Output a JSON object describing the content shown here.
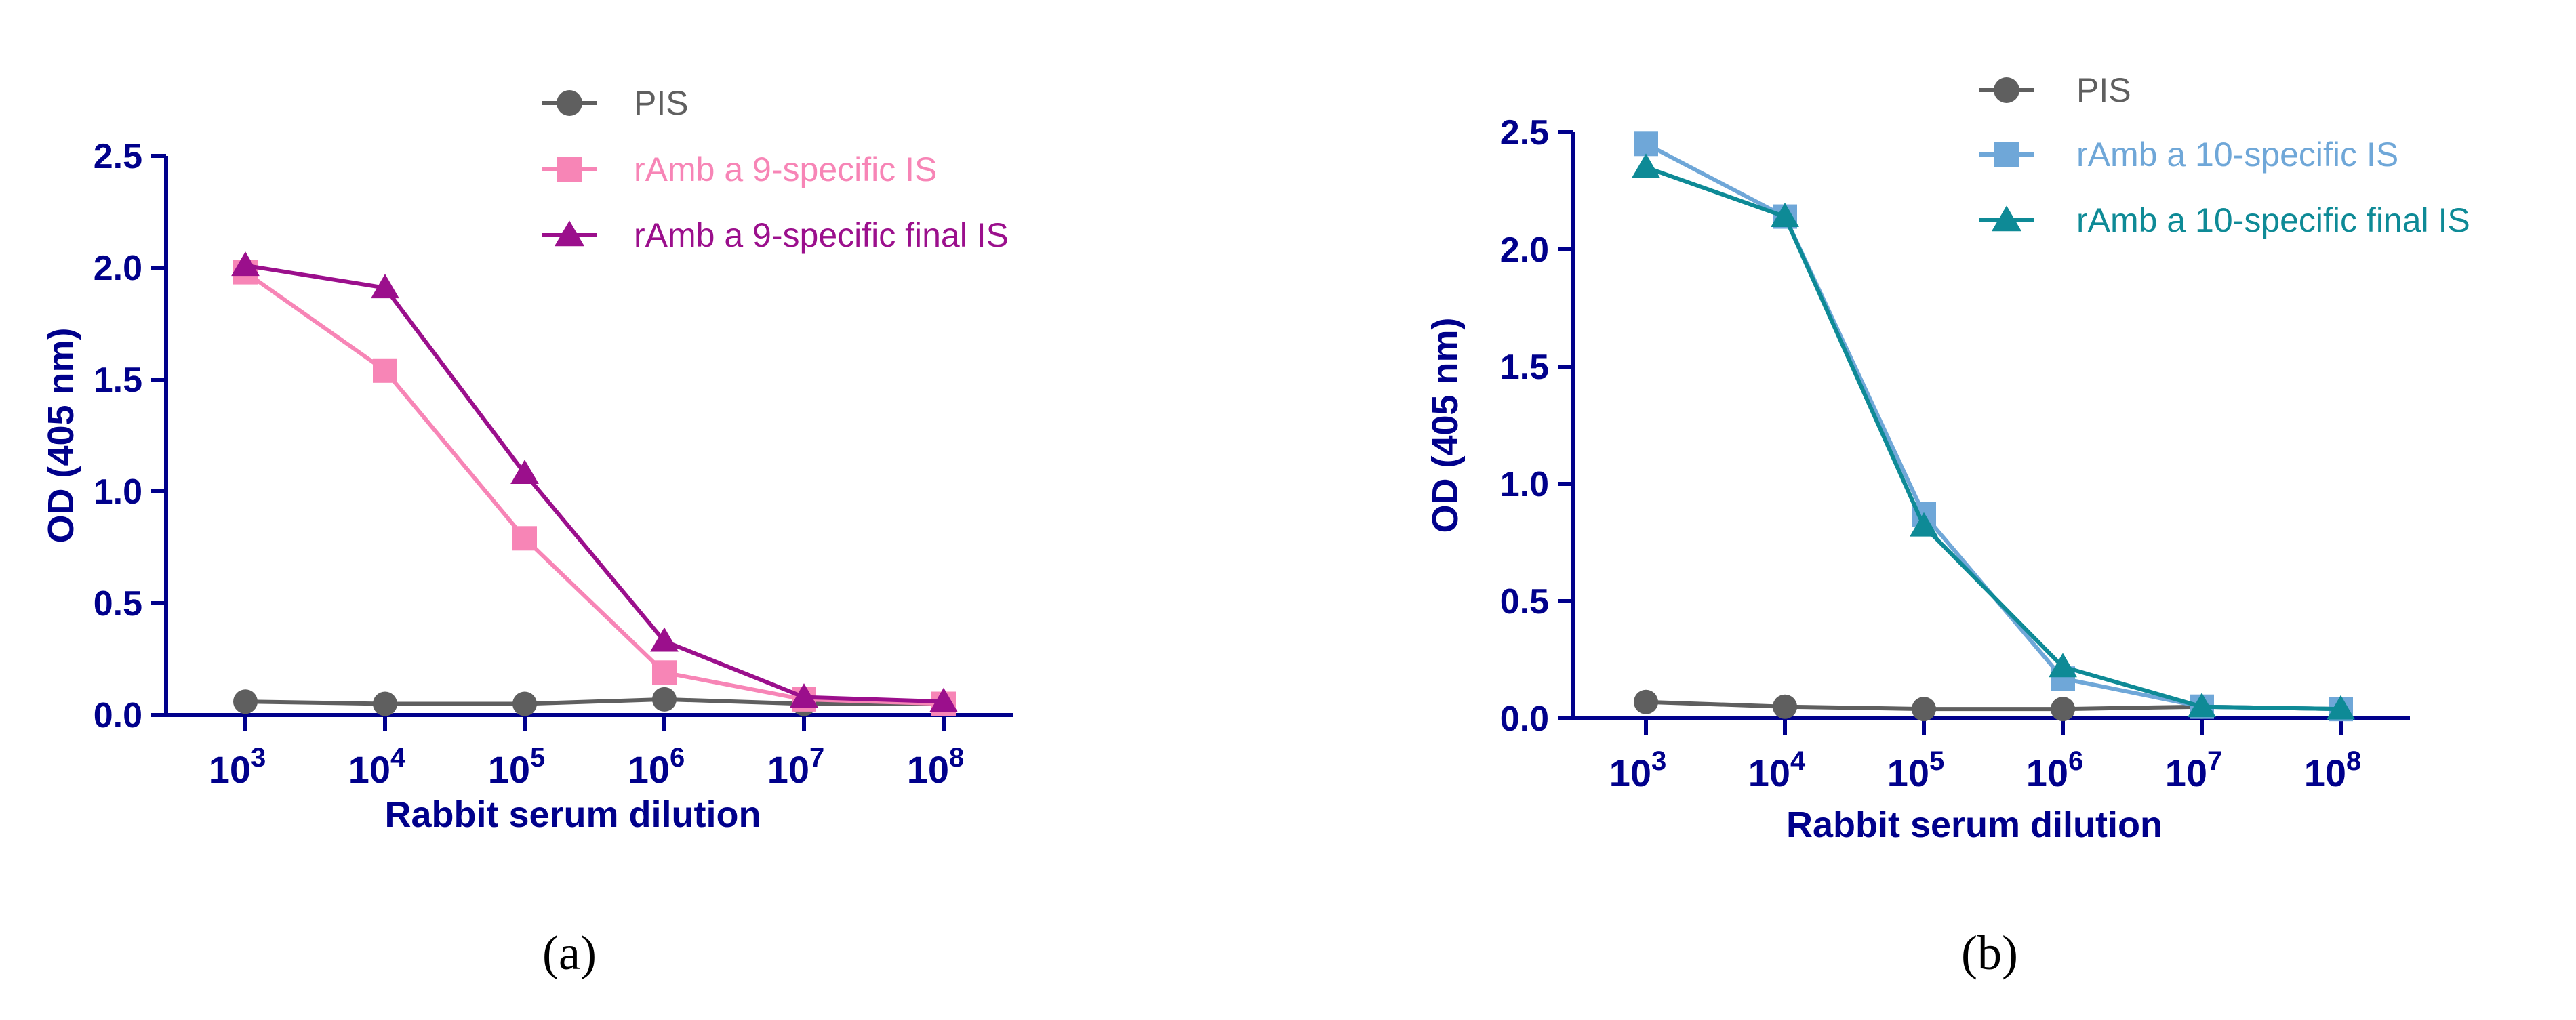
{
  "chart_data": [
    {
      "type": "line",
      "panel_label": "(a)",
      "xlabel": "Rabbit serum dilution",
      "ylabel": "OD (405 nm)",
      "x_scale": "log",
      "x": [
        1000,
        10000,
        100000,
        1000000,
        10000000,
        100000000
      ],
      "x_tick_base": "10",
      "x_tick_exponents": [
        "3",
        "4",
        "5",
        "6",
        "7",
        "8"
      ],
      "ylim": [
        0,
        2.5
      ],
      "y_ticks": [
        "0.0",
        "0.5",
        "1.0",
        "1.5",
        "2.0",
        "2.5"
      ],
      "grid": false,
      "legend_position": "top-center",
      "series": [
        {
          "name": "PIS",
          "color": "#5f5f5f",
          "marker": "circle",
          "values": [
            0.06,
            0.05,
            0.05,
            0.07,
            0.05,
            0.05
          ]
        },
        {
          "name": "rAmb a 9-specific IS",
          "color": "#f785b6",
          "marker": "square",
          "values": [
            1.98,
            1.54,
            0.79,
            0.19,
            0.07,
            0.05
          ]
        },
        {
          "name": "rAmb a 9-specific final IS",
          "color": "#9b0f8c",
          "marker": "triangle",
          "values": [
            2.01,
            1.91,
            1.08,
            0.33,
            0.08,
            0.06
          ]
        }
      ]
    },
    {
      "type": "line",
      "panel_label": "(b)",
      "xlabel": "Rabbit serum dilution",
      "ylabel": "OD (405 nm)",
      "x_scale": "log",
      "x": [
        1000,
        10000,
        100000,
        1000000,
        10000000,
        100000000
      ],
      "x_tick_base": "10",
      "x_tick_exponents": [
        "3",
        "4",
        "5",
        "6",
        "7",
        "8"
      ],
      "ylim": [
        0,
        2.5
      ],
      "y_ticks": [
        "0.0",
        "0.5",
        "1.0",
        "1.5",
        "2.0",
        "2.5"
      ],
      "grid": false,
      "legend_position": "top-right",
      "series": [
        {
          "name": "PIS",
          "color": "#5f5f5f",
          "marker": "circle",
          "values": [
            0.07,
            0.05,
            0.04,
            0.04,
            0.05,
            0.04
          ]
        },
        {
          "name": "rAmb a 10-specific IS",
          "color": "#6fa7d8",
          "marker": "square",
          "values": [
            2.45,
            2.14,
            0.87,
            0.17,
            0.05,
            0.04
          ]
        },
        {
          "name": "rAmb a 10-specific final IS",
          "color": "#0e8a96",
          "marker": "triangle",
          "values": [
            2.35,
            2.14,
            0.82,
            0.22,
            0.05,
            0.04
          ]
        }
      ]
    }
  ],
  "colors": {
    "axis": "#00008b"
  }
}
